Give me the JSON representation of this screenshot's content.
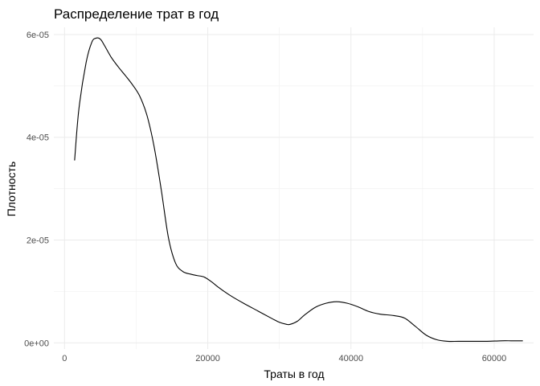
{
  "chart_data": {
    "type": "line",
    "title": "Распределение трат в год",
    "xlabel": "Траты в год",
    "ylabel": "Плотность",
    "xlim": [
      -1500,
      65500
    ],
    "ylim": [
      -1.2e-06,
      6.14e-05
    ],
    "x_ticks": [
      0,
      20000,
      40000,
      60000
    ],
    "x_tick_labels": [
      "0",
      "20000",
      "40000",
      "60000"
    ],
    "x_minor_ticks": [
      10000,
      30000,
      50000
    ],
    "y_ticks": [
      0,
      2e-05,
      4e-05,
      6e-05
    ],
    "y_tick_labels": [
      "0e+00",
      "2e-05",
      "4e-05",
      "6e-05"
    ],
    "y_minor_ticks": [
      1e-05,
      3e-05,
      5e-05
    ],
    "grid": true,
    "legend": "none",
    "line_color": "#000000",
    "series": [
      {
        "x": [
          1400,
          2000,
          3000,
          3800,
          4400,
          5000,
          5600,
          6500,
          7500,
          8500,
          9500,
          10500,
          11500,
          12500,
          13500,
          14500,
          15500,
          16500,
          17500,
          18500,
          19500,
          20500,
          21500,
          22500,
          23500,
          25000,
          27000,
          29000,
          30000,
          31000,
          31500,
          32500,
          33500,
          35000,
          36500,
          38000,
          39500,
          41000,
          42500,
          44000,
          46000,
          47500,
          49000,
          50500,
          52000,
          53500,
          55000,
          57000,
          59000,
          61000,
          62500,
          64000
        ],
        "y": [
          3.55e-05,
          4.55e-05,
          5.45e-05,
          5.85e-05,
          5.93e-05,
          5.91e-05,
          5.78e-05,
          5.56e-05,
          5.37e-05,
          5.2e-05,
          5.02e-05,
          4.8e-05,
          4.43e-05,
          3.82e-05,
          2.98e-05,
          2.05e-05,
          1.55e-05,
          1.39e-05,
          1.34e-05,
          1.31e-05,
          1.28e-05,
          1.19e-05,
          1.08e-05,
          9.8e-06,
          8.9e-06,
          7.7e-06,
          6.2e-06,
          4.7e-06,
          4e-06,
          3.6e-06,
          3.6e-06,
          4.2e-06,
          5.4e-06,
          6.9e-06,
          7.7e-06,
          8e-06,
          7.7e-06,
          7e-06,
          6.1e-06,
          5.6e-06,
          5.3e-06,
          4.8e-06,
          3.2e-06,
          1.5e-06,
          6e-07,
          3e-07,
          3e-07,
          3e-07,
          3e-07,
          4e-07,
          4e-07,
          4e-07
        ]
      }
    ]
  }
}
